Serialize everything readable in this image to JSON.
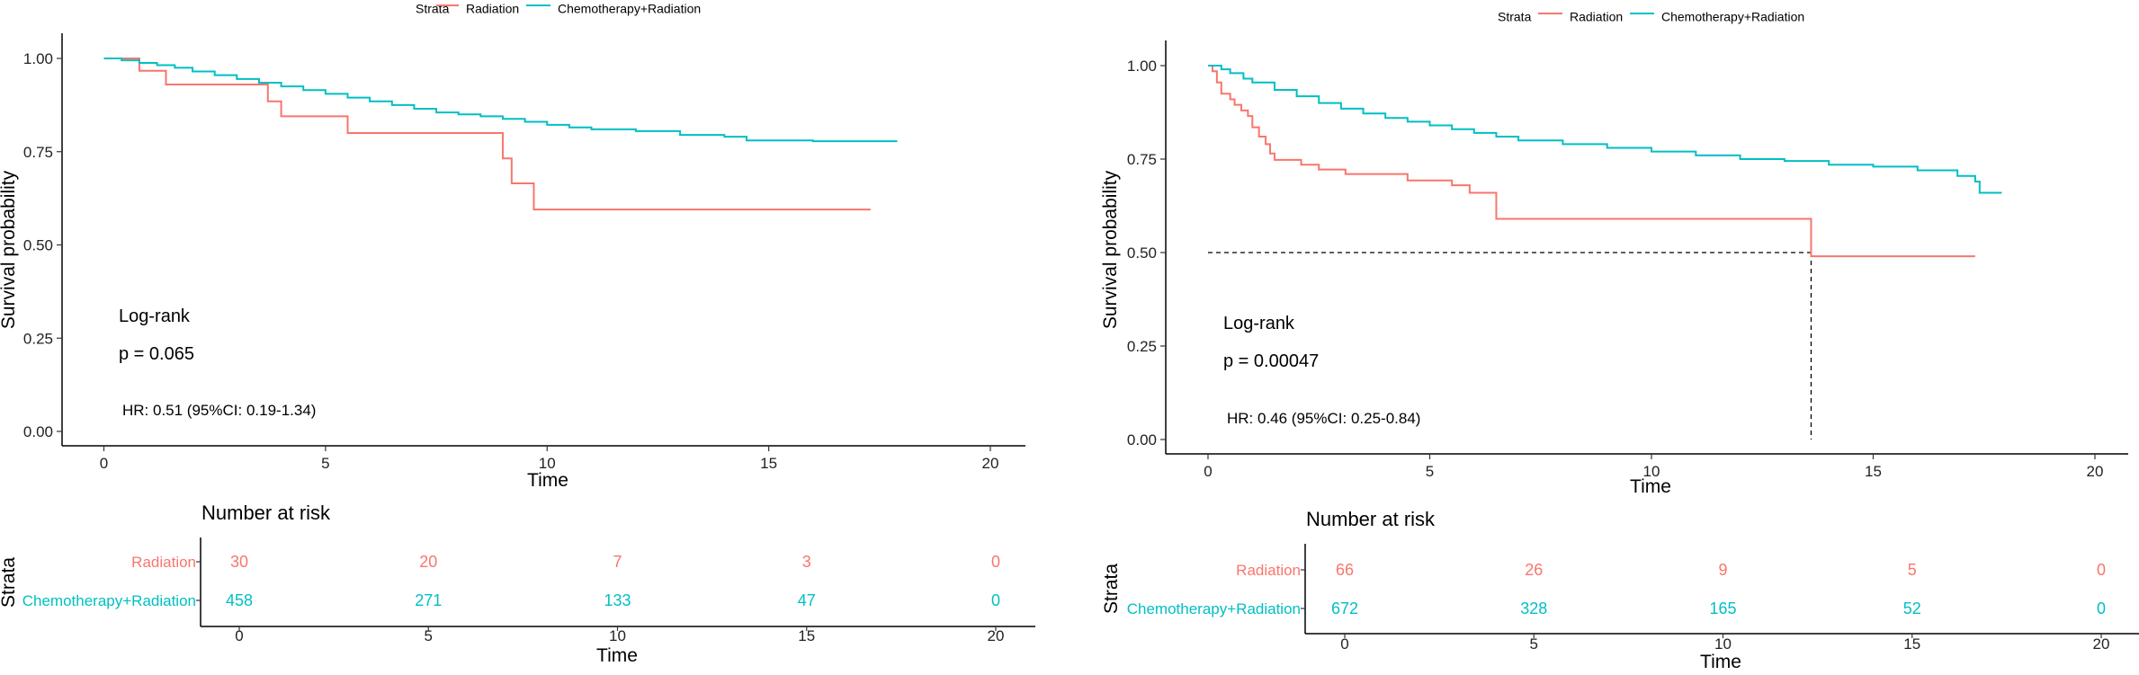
{
  "colors": {
    "radiation": "#F8766D",
    "chemo_radiation": "#00BFC4"
  },
  "chart_data": [
    {
      "type": "line",
      "subtype": "kaplan-meier",
      "legend": {
        "title": "Strata",
        "entries": [
          "Radiation",
          "Chemotherapy+Radiation"
        ],
        "position": "top"
      },
      "xlabel": "Time",
      "ylabel": "Survival probability",
      "xlim": [
        0,
        20
      ],
      "ylim": [
        0,
        1
      ],
      "xticks": [
        "0",
        "5",
        "10",
        "15",
        "20"
      ],
      "yticks": [
        "0.00",
        "0.25",
        "0.50",
        "0.75",
        "1.00"
      ],
      "annotations": {
        "test": "Log-rank",
        "p": "p = 0.065",
        "hr": "HR: 0.51 (95%CI: 0.19-1.34)"
      },
      "series": [
        {
          "name": "Radiation",
          "steps": [
            [
              0,
              1.0
            ],
            [
              0.8,
              0.967
            ],
            [
              1.4,
              0.93
            ],
            [
              3.7,
              0.885
            ],
            [
              4.0,
              0.845
            ],
            [
              5.5,
              0.8
            ],
            [
              9.0,
              0.732
            ],
            [
              9.2,
              0.665
            ],
            [
              9.7,
              0.595
            ],
            [
              17.3,
              0.595
            ]
          ]
        },
        {
          "name": "Chemotherapy+Radiation",
          "steps": [
            [
              0,
              1.0
            ],
            [
              0.4,
              0.995
            ],
            [
              0.8,
              0.988
            ],
            [
              1.2,
              0.982
            ],
            [
              1.6,
              0.975
            ],
            [
              2.0,
              0.965
            ],
            [
              2.5,
              0.955
            ],
            [
              3.0,
              0.945
            ],
            [
              3.5,
              0.935
            ],
            [
              4.0,
              0.925
            ],
            [
              4.5,
              0.915
            ],
            [
              5.0,
              0.905
            ],
            [
              5.5,
              0.895
            ],
            [
              6.0,
              0.885
            ],
            [
              6.5,
              0.875
            ],
            [
              7.0,
              0.865
            ],
            [
              7.5,
              0.855
            ],
            [
              8.0,
              0.85
            ],
            [
              8.5,
              0.845
            ],
            [
              9.0,
              0.838
            ],
            [
              9.5,
              0.83
            ],
            [
              10.0,
              0.822
            ],
            [
              10.5,
              0.815
            ],
            [
              11.0,
              0.81
            ],
            [
              12.0,
              0.805
            ],
            [
              13.0,
              0.795
            ],
            [
              14.0,
              0.79
            ],
            [
              14.5,
              0.78
            ],
            [
              16.0,
              0.778
            ],
            [
              17.9,
              0.778
            ]
          ]
        }
      ],
      "risk_table": {
        "title": "Number at risk",
        "ylabel": "Strata",
        "xlabel": "Time",
        "xticks": [
          "0",
          "5",
          "10",
          "15",
          "20"
        ],
        "rows": [
          {
            "label": "Radiation",
            "values": [
              "30",
              "20",
              "7",
              "3",
              "0"
            ]
          },
          {
            "label": "Chemotherapy+Radiation",
            "values": [
              "458",
              "271",
              "133",
              "47",
              "0"
            ]
          }
        ]
      }
    },
    {
      "type": "line",
      "subtype": "kaplan-meier",
      "legend": {
        "title": "Strata",
        "entries": [
          "Radiation",
          "Chemotherapy+Radiation"
        ],
        "position": "top"
      },
      "xlabel": "Time",
      "ylabel": "Survival probability",
      "xlim": [
        0,
        20
      ],
      "ylim": [
        0,
        1
      ],
      "xticks": [
        "0",
        "5",
        "10",
        "15",
        "20"
      ],
      "yticks": [
        "0.00",
        "0.25",
        "0.50",
        "0.75",
        "1.00"
      ],
      "median_reference": {
        "y": 0.5,
        "x": 13.6
      },
      "annotations": {
        "test": "Log-rank",
        "p": "p = 0.00047",
        "hr": "HR: 0.46 (95%CI: 0.25-0.84)"
      },
      "series": [
        {
          "name": "Radiation",
          "steps": [
            [
              0,
              1.0
            ],
            [
              0.1,
              0.985
            ],
            [
              0.2,
              0.955
            ],
            [
              0.3,
              0.925
            ],
            [
              0.5,
              0.91
            ],
            [
              0.6,
              0.895
            ],
            [
              0.75,
              0.88
            ],
            [
              0.9,
              0.865
            ],
            [
              1.0,
              0.835
            ],
            [
              1.15,
              0.81
            ],
            [
              1.3,
              0.79
            ],
            [
              1.4,
              0.765
            ],
            [
              1.5,
              0.748
            ],
            [
              2.1,
              0.735
            ],
            [
              2.5,
              0.722
            ],
            [
              3.1,
              0.71
            ],
            [
              4.5,
              0.693
            ],
            [
              5.5,
              0.68
            ],
            [
              5.9,
              0.66
            ],
            [
              6.5,
              0.59
            ],
            [
              13.6,
              0.49
            ],
            [
              17.3,
              0.49
            ]
          ]
        },
        {
          "name": "Chemotherapy+Radiation",
          "steps": [
            [
              0,
              1.0
            ],
            [
              0.3,
              0.99
            ],
            [
              0.5,
              0.98
            ],
            [
              0.8,
              0.965
            ],
            [
              1.0,
              0.955
            ],
            [
              1.5,
              0.935
            ],
            [
              2.0,
              0.918
            ],
            [
              2.5,
              0.9
            ],
            [
              3.0,
              0.885
            ],
            [
              3.5,
              0.872
            ],
            [
              4.0,
              0.86
            ],
            [
              4.5,
              0.85
            ],
            [
              5.0,
              0.84
            ],
            [
              5.5,
              0.83
            ],
            [
              6.0,
              0.82
            ],
            [
              6.5,
              0.81
            ],
            [
              7.0,
              0.8
            ],
            [
              8.0,
              0.79
            ],
            [
              9.0,
              0.78
            ],
            [
              10.0,
              0.77
            ],
            [
              11.0,
              0.76
            ],
            [
              12.0,
              0.75
            ],
            [
              13.0,
              0.745
            ],
            [
              14.0,
              0.735
            ],
            [
              15.0,
              0.73
            ],
            [
              16.0,
              0.72
            ],
            [
              16.9,
              0.705
            ],
            [
              17.3,
              0.69
            ],
            [
              17.4,
              0.66
            ],
            [
              17.9,
              0.66
            ]
          ]
        }
      ],
      "risk_table": {
        "title": "Number at risk",
        "ylabel": "Strata",
        "xlabel": "Time",
        "xticks": [
          "0",
          "5",
          "10",
          "15",
          "20"
        ],
        "rows": [
          {
            "label": "Radiation",
            "values": [
              "66",
              "26",
              "9",
              "5",
              "0"
            ]
          },
          {
            "label": "Chemotherapy+Radiation",
            "values": [
              "672",
              "328",
              "165",
              "52",
              "0"
            ]
          }
        ]
      }
    }
  ]
}
